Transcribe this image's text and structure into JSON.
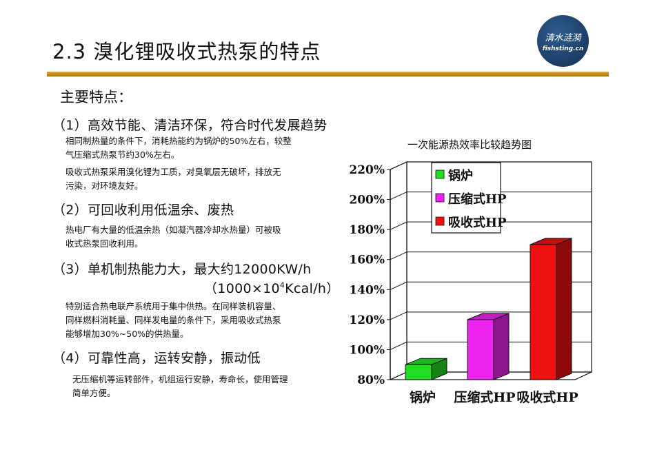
{
  "slide": {
    "title": "2.3 溴化锂吸收式热泵的特点",
    "logo_calligraphy": "清水涟漪",
    "logo_url": "fishsting.cn"
  },
  "main_heading": "主要特点：",
  "points": [
    {
      "heading": "（1）高效节能、清洁环保，符合时代发展趋势"
    },
    {
      "heading": "（2）可回收利用低温余、废热"
    },
    {
      "heading": "（3）单机制热能力大，最大约12000KW/h",
      "heading_line2_pre": "（1000×10",
      "heading_line2_sup": "4",
      "heading_line2_post": "Kcal/h）"
    },
    {
      "heading": "（4）可靠性高，运转安静，振动低"
    }
  ],
  "descriptions": {
    "p1_a_line1": "相同制热量的条件下，消耗热能约为锅炉的50%左右，较整",
    "p1_a_line2": "气压缩式热泵节约30%左右。",
    "p1_b_line1": "吸收式热泵采用溴化锂为工质，对臭氧层无破坏，排放无",
    "p1_b_line2": "污染，对环境友好。",
    "p2_line1": "热电厂有大量的低温余热（如凝汽器冷却水热量）可被吸",
    "p2_line2": "收式热泵回收利用。",
    "p3_line1": "特别适合热电联产系统用于集中供热。在同样装机容量、",
    "p3_line2": "同样燃料消耗量、同样发电量的条件下，采用吸收式热泵",
    "p3_line3": "能够增加30%~50%的供热量。",
    "p4_line1": "无压缩机等运转部件，机组运行安静，寿命长，使用管理",
    "p4_line2": "简单方便。"
  },
  "chart_data": {
    "type": "bar",
    "title": "一次能源热效率比较趋势图",
    "categories": [
      "锅炉",
      "压缩式HP",
      "吸收式HP"
    ],
    "values": [
      90,
      120,
      170
    ],
    "colors": [
      "#22dd22",
      "#ee22ee",
      "#ee1111"
    ],
    "ylim": [
      80,
      220
    ],
    "yticks": [
      "80%",
      "100%",
      "120%",
      "140%",
      "160%",
      "180%",
      "200%",
      "220%"
    ],
    "ytick_values": [
      80,
      100,
      120,
      140,
      160,
      180,
      200,
      220
    ],
    "legend": [
      "锅炉",
      "压缩式HP",
      "吸收式HP"
    ],
    "legend_position": "top-left",
    "grid": true,
    "style": "3d"
  }
}
